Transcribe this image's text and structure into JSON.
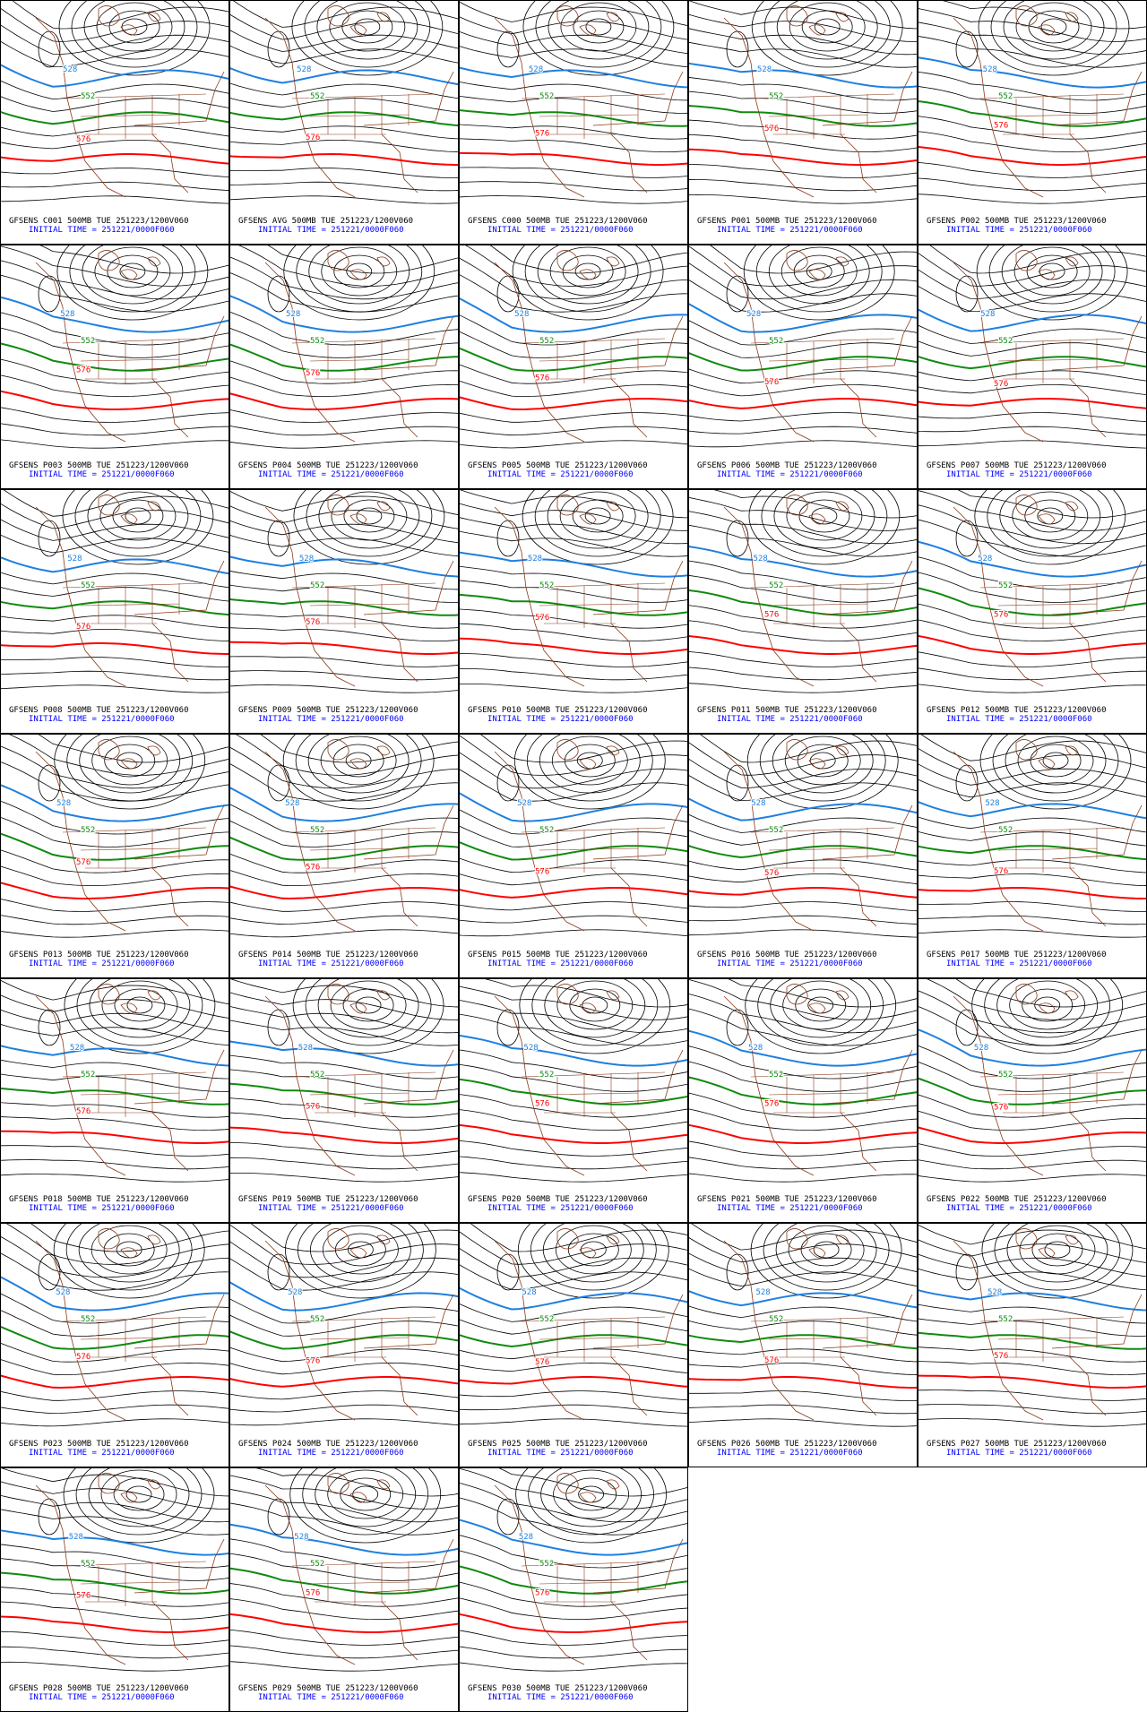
{
  "panels": [
    {
      "title": "GFSENS C001 500MB TUE 251223/1200V060",
      "init": "INITIAL TIME = 251221/0000F060",
      "contours": [
        "528",
        "552",
        "576"
      ]
    },
    {
      "title": "GFSENS AVG 500MB TUE 251223/1200V060",
      "init": "INITIAL TIME = 251221/0000F060",
      "contours": [
        "528",
        "552",
        "576"
      ]
    },
    {
      "title": "GFSENS C000 500MB TUE 251223/1200V060",
      "init": "INITIAL TIME = 251221/0000F060",
      "contours": [
        "528",
        "552",
        "576"
      ]
    },
    {
      "title": "GFSENS P001 500MB TUE 251223/1200V060",
      "init": "INITIAL TIME = 251221/0000F060",
      "contours": [
        "528",
        "552",
        "576"
      ]
    },
    {
      "title": "GFSENS P002 500MB TUE 251223/1200V060",
      "init": "INITIAL TIME = 251221/0000F060",
      "contours": [
        "528",
        "552",
        "576"
      ]
    },
    {
      "title": "GFSENS P003 500MB TUE 251223/1200V060",
      "init": "INITIAL TIME = 251221/0000F060",
      "contours": [
        "528",
        "552",
        "576"
      ]
    },
    {
      "title": "GFSENS P004 500MB TUE 251223/1200V060",
      "init": "INITIAL TIME = 251221/0000F060",
      "contours": [
        "528",
        "552",
        "576"
      ]
    },
    {
      "title": "GFSENS P005 500MB TUE 251223/1200V060",
      "init": "INITIAL TIME = 251221/0000F060",
      "contours": [
        "528",
        "552",
        "576"
      ]
    },
    {
      "title": "GFSENS P006 500MB TUE 251223/1200V060",
      "init": "INITIAL TIME = 251221/0000F060",
      "contours": [
        "528",
        "552",
        "576"
      ]
    },
    {
      "title": "GFSENS P007 500MB TUE 251223/1200V060",
      "init": "INITIAL TIME = 251221/0000F060",
      "contours": [
        "528",
        "552",
        "576"
      ]
    },
    {
      "title": "GFSENS P008 500MB TUE 251223/1200V060",
      "init": "INITIAL TIME = 251221/0000F060",
      "contours": [
        "528",
        "552",
        "576"
      ]
    },
    {
      "title": "GFSENS P009 500MB TUE 251223/1200V060",
      "init": "INITIAL TIME = 251221/0000F060",
      "contours": [
        "528",
        "552",
        "576"
      ]
    },
    {
      "title": "GFSENS P010 500MB TUE 251223/1200V060",
      "init": "INITIAL TIME = 251221/0000F060",
      "contours": [
        "528",
        "552",
        "576"
      ]
    },
    {
      "title": "GFSENS P011 500MB TUE 251223/1200V060",
      "init": "INITIAL TIME = 251221/0000F060",
      "contours": [
        "528",
        "552",
        "576"
      ]
    },
    {
      "title": "GFSENS P012 500MB TUE 251223/1200V060",
      "init": "INITIAL TIME = 251221/0000F060",
      "contours": [
        "528",
        "552",
        "576"
      ]
    },
    {
      "title": "GFSENS P013 500MB TUE 251223/1200V060",
      "init": "INITIAL TIME = 251221/0000F060",
      "contours": [
        "528",
        "552",
        "576"
      ]
    },
    {
      "title": "GFSENS P014 500MB TUE 251223/1200V060",
      "init": "INITIAL TIME = 251221/0000F060",
      "contours": [
        "528",
        "552",
        "576"
      ]
    },
    {
      "title": "GFSENS P015 500MB TUE 251223/1200V060",
      "init": "INITIAL TIME = 251221/0000F060",
      "contours": [
        "528",
        "552",
        "576"
      ]
    },
    {
      "title": "GFSENS P016 500MB TUE 251223/1200V060",
      "init": "INITIAL TIME = 251221/0000F060",
      "contours": [
        "528",
        "552",
        "576"
      ]
    },
    {
      "title": "GFSENS P017 500MB TUE 251223/1200V060",
      "init": "INITIAL TIME = 251221/0000F060",
      "contours": [
        "528",
        "552",
        "576"
      ]
    },
    {
      "title": "GFSENS P018 500MB TUE 251223/1200V060",
      "init": "INITIAL TIME = 251221/0000F060",
      "contours": [
        "528",
        "552",
        "576"
      ]
    },
    {
      "title": "GFSENS P019 500MB TUE 251223/1200V060",
      "init": "INITIAL TIME = 251221/0000F060",
      "contours": [
        "528",
        "552",
        "576"
      ]
    },
    {
      "title": "GFSENS P020 500MB TUE 251223/1200V060",
      "init": "INITIAL TIME = 251221/0000F060",
      "contours": [
        "528",
        "552",
        "576"
      ]
    },
    {
      "title": "GFSENS P021 500MB TUE 251223/1200V060",
      "init": "INITIAL TIME = 251221/0000F060",
      "contours": [
        "528",
        "552",
        "576"
      ]
    },
    {
      "title": "GFSENS P022 500MB TUE 251223/1200V060",
      "init": "INITIAL TIME = 251221/0000F060",
      "contours": [
        "528",
        "552",
        "576"
      ]
    },
    {
      "title": "GFSENS P023 500MB TUE 251223/1200V060",
      "init": "INITIAL TIME = 251221/0000F060",
      "contours": [
        "528",
        "552",
        "576"
      ]
    },
    {
      "title": "GFSENS P024 500MB TUE 251223/1200V060",
      "init": "INITIAL TIME = 251221/0000F060",
      "contours": [
        "528",
        "552",
        "576"
      ]
    },
    {
      "title": "GFSENS P025 500MB TUE 251223/1200V060",
      "init": "INITIAL TIME = 251221/0000F060",
      "contours": [
        "528",
        "552",
        "576"
      ]
    },
    {
      "title": "GFSENS P026 500MB TUE 251223/1200V060",
      "init": "INITIAL TIME = 251221/0000F060",
      "contours": [
        "528",
        "552",
        "576"
      ]
    },
    {
      "title": "GFSENS P027 500MB TUE 251223/1200V060",
      "init": "INITIAL TIME = 251221/0000F060",
      "contours": [
        "528",
        "552",
        "576"
      ]
    },
    {
      "title": "GFSENS P028 500MB TUE 251223/1200V060",
      "init": "INITIAL TIME = 251221/0000F060",
      "contours": [
        "528",
        "552",
        "576"
      ]
    },
    {
      "title": "GFSENS P029 500MB TUE 251223/1200V060",
      "init": "INITIAL TIME = 251221/0000F060",
      "contours": [
        "528",
        "552",
        "576"
      ]
    },
    {
      "title": "GFSENS P030 500MB TUE 251223/1200V060",
      "init": "INITIAL TIME = 251221/0000F060",
      "contours": [
        "528",
        "552",
        "576"
      ]
    }
  ]
}
